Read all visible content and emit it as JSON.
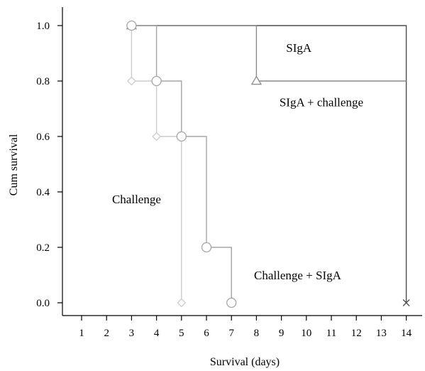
{
  "chart_data": {
    "type": "line",
    "step": true,
    "xlabel": "Survival (days)",
    "ylabel": "Cum survival",
    "xlim": [
      0,
      15
    ],
    "ylim": [
      0,
      1.0
    ],
    "x_ticks": [
      1,
      2,
      3,
      4,
      5,
      6,
      7,
      8,
      9,
      10,
      11,
      12,
      13,
      14
    ],
    "y_ticks": [
      "0.0",
      "0.2",
      "0.4",
      "0.6",
      "0.8",
      "1.0"
    ],
    "grid": false,
    "series": [
      {
        "name": "SIgA",
        "color": "#4d4d4d",
        "marker": "cross",
        "points": [
          [
            3,
            1.0
          ],
          [
            14,
            1.0
          ],
          [
            14,
            0.0
          ]
        ],
        "markers": [
          [
            14,
            0.0
          ]
        ]
      },
      {
        "name": "SIgA + challenge",
        "color": "#8c8c8c",
        "marker": "triangle",
        "points": [
          [
            3,
            1.0
          ],
          [
            8,
            1.0
          ],
          [
            8,
            0.8
          ],
          [
            14,
            0.8
          ]
        ],
        "markers": [
          [
            3,
            1.0
          ],
          [
            8,
            0.8
          ]
        ]
      },
      {
        "name": "Challenge + SIgA",
        "color": "#a6a6a6",
        "marker": "circle",
        "points": [
          [
            3,
            1.0
          ],
          [
            4,
            1.0
          ],
          [
            4,
            0.8
          ],
          [
            5,
            0.8
          ],
          [
            5,
            0.6
          ],
          [
            6,
            0.6
          ],
          [
            6,
            0.2
          ],
          [
            7,
            0.2
          ],
          [
            7,
            0.0
          ]
        ],
        "markers": [
          [
            3,
            1.0
          ],
          [
            4,
            0.8
          ],
          [
            5,
            0.6
          ],
          [
            6,
            0.2
          ],
          [
            7,
            0.0
          ]
        ]
      },
      {
        "name": "Challenge",
        "color": "#cccccc",
        "marker": "diamond",
        "points": [
          [
            3,
            1.0
          ],
          [
            3,
            0.8
          ],
          [
            4,
            0.8
          ],
          [
            4,
            0.6
          ],
          [
            5,
            0.6
          ],
          [
            5,
            0.0
          ]
        ],
        "markers": [
          [
            3,
            0.8
          ],
          [
            4,
            0.6
          ],
          [
            5,
            0.0
          ]
        ]
      }
    ],
    "annotations": [
      {
        "text": "SIgA",
        "x": 9.7,
        "y": 0.92
      },
      {
        "text": "SIgA + challenge",
        "x": 10.6,
        "y": 0.725
      },
      {
        "text": "Challenge",
        "x": 3.2,
        "y": 0.375
      },
      {
        "text": "Challenge + SIgA",
        "x": 9.65,
        "y": 0.1
      }
    ]
  }
}
